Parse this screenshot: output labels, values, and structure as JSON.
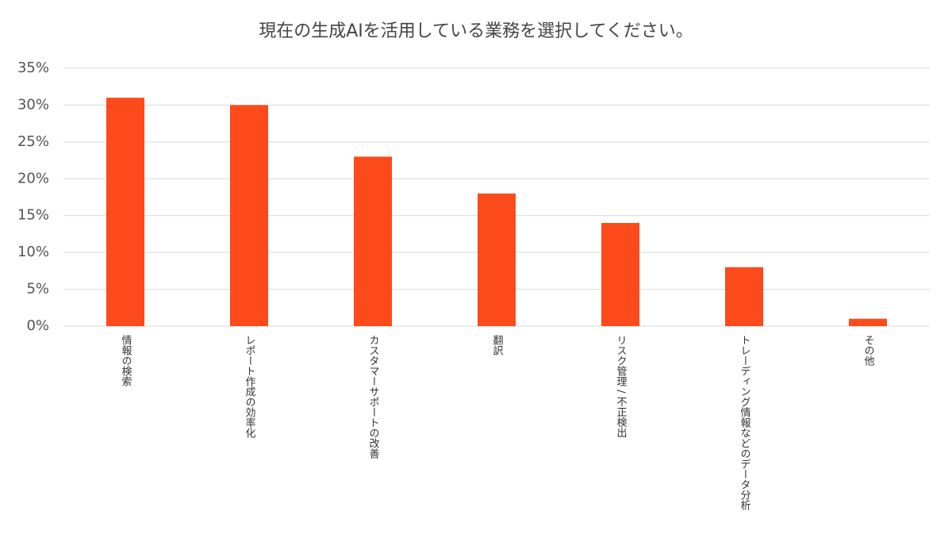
{
  "chart_data": {
    "type": "bar",
    "title": "現在の生成AIを活用している業務を選択してください。",
    "categories": [
      "情報の検索",
      "レポート作成の効率化",
      "カスタマーサポートの改善",
      "翻訳",
      "リスク管理 / 不正検出",
      "トレーディング情報などのデータ分析",
      "その他"
    ],
    "values": [
      31,
      30,
      23,
      18,
      14,
      8,
      1
    ],
    "color": "#fc4a1a",
    "ylim": [
      0,
      35
    ],
    "yticks": [
      {
        "value": 0,
        "label": "0%"
      },
      {
        "value": 5,
        "label": "5%"
      },
      {
        "value": 10,
        "label": "10%"
      },
      {
        "value": 15,
        "label": "15%"
      },
      {
        "value": 20,
        "label": "20%"
      },
      {
        "value": 25,
        "label": "25%"
      },
      {
        "value": 30,
        "label": "30%"
      },
      {
        "value": 35,
        "label": "35%"
      }
    ],
    "grid": true
  }
}
